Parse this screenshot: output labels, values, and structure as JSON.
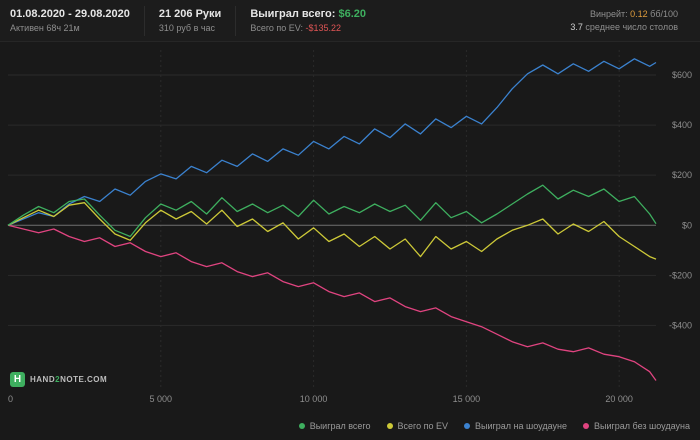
{
  "header": {
    "date_range": "01.08.2020 - 29.08.2020",
    "active_time": "Активен 68ч 21м",
    "hands": "21 206 Руки",
    "rate_per_hour": "310 руб в час",
    "won_total_label": "Выиграл всего:",
    "won_total_value": "$6.20",
    "ev_total_label": "Всего по EV:",
    "ev_total_value": "-$135.22",
    "winrate_label": "Винрейт:",
    "winrate_value": "0.12",
    "winrate_unit": "бб/100",
    "avg_tables_value": "3.7",
    "avg_tables_label": "среднее число столов"
  },
  "logo": {
    "icon_letter": "H",
    "text_part1": "HAND",
    "text_part2": "2",
    "text_part3": "NOTE.COM"
  },
  "chart_data": {
    "type": "line",
    "title": "",
    "xlabel": "",
    "ylabel": "",
    "xlim": [
      0,
      21206
    ],
    "ylim": [
      -650,
      700
    ],
    "grid": true,
    "legend_position": "bottom-right",
    "x_ticks": [
      {
        "value": 0,
        "label": "0"
      },
      {
        "value": 5000,
        "label": "5 000"
      },
      {
        "value": 10000,
        "label": "10 000"
      },
      {
        "value": 15000,
        "label": "15 000"
      },
      {
        "value": 20000,
        "label": "20 000"
      }
    ],
    "y_ticks": [
      {
        "value": 600,
        "label": "$600"
      },
      {
        "value": 400,
        "label": "$400"
      },
      {
        "value": 200,
        "label": "$200"
      },
      {
        "value": 0,
        "label": "$0"
      },
      {
        "value": -200,
        "label": "-$200"
      },
      {
        "value": -400,
        "label": "-$400"
      }
    ],
    "colors": {
      "background": "#191919",
      "grid": "#2a2a2a",
      "zero_line": "#707070",
      "axis_text": "#8e8e8e"
    },
    "series": [
      {
        "name": "Выиграл всего",
        "color": "#3eaf5f",
        "final_value": 6.2,
        "points": [
          [
            0,
            0
          ],
          [
            500,
            40
          ],
          [
            1000,
            75
          ],
          [
            1500,
            50
          ],
          [
            2000,
            95
          ],
          [
            2500,
            105
          ],
          [
            3000,
            40
          ],
          [
            3500,
            -20
          ],
          [
            4000,
            -45
          ],
          [
            4500,
            30
          ],
          [
            5000,
            85
          ],
          [
            5500,
            60
          ],
          [
            6000,
            95
          ],
          [
            6500,
            45
          ],
          [
            7000,
            110
          ],
          [
            7500,
            55
          ],
          [
            8000,
            85
          ],
          [
            8500,
            50
          ],
          [
            9000,
            80
          ],
          [
            9500,
            35
          ],
          [
            10000,
            100
          ],
          [
            10500,
            45
          ],
          [
            11000,
            75
          ],
          [
            11500,
            50
          ],
          [
            12000,
            85
          ],
          [
            12500,
            55
          ],
          [
            13000,
            80
          ],
          [
            13500,
            20
          ],
          [
            14000,
            90
          ],
          [
            14500,
            30
          ],
          [
            15000,
            55
          ],
          [
            15500,
            10
          ],
          [
            16000,
            45
          ],
          [
            16500,
            85
          ],
          [
            17000,
            125
          ],
          [
            17500,
            160
          ],
          [
            18000,
            105
          ],
          [
            18500,
            140
          ],
          [
            19000,
            115
          ],
          [
            19500,
            145
          ],
          [
            20000,
            95
          ],
          [
            20500,
            115
          ],
          [
            21000,
            45
          ],
          [
            21206,
            6.2
          ]
        ]
      },
      {
        "name": "Всего по EV",
        "color": "#cdc938",
        "final_value": -135.22,
        "points": [
          [
            0,
            0
          ],
          [
            500,
            30
          ],
          [
            1000,
            60
          ],
          [
            1500,
            35
          ],
          [
            2000,
            80
          ],
          [
            2500,
            90
          ],
          [
            3000,
            25
          ],
          [
            3500,
            -35
          ],
          [
            4000,
            -60
          ],
          [
            4500,
            10
          ],
          [
            5000,
            60
          ],
          [
            5500,
            25
          ],
          [
            6000,
            55
          ],
          [
            6500,
            5
          ],
          [
            7000,
            60
          ],
          [
            7500,
            -5
          ],
          [
            8000,
            25
          ],
          [
            8500,
            -25
          ],
          [
            9000,
            10
          ],
          [
            9500,
            -55
          ],
          [
            10000,
            -10
          ],
          [
            10500,
            -65
          ],
          [
            11000,
            -35
          ],
          [
            11500,
            -85
          ],
          [
            12000,
            -45
          ],
          [
            12500,
            -95
          ],
          [
            13000,
            -55
          ],
          [
            13500,
            -125
          ],
          [
            14000,
            -45
          ],
          [
            14500,
            -95
          ],
          [
            15000,
            -65
          ],
          [
            15500,
            -105
          ],
          [
            16000,
            -55
          ],
          [
            16500,
            -20
          ],
          [
            17000,
            0
          ],
          [
            17500,
            25
          ],
          [
            18000,
            -35
          ],
          [
            18500,
            5
          ],
          [
            19000,
            -25
          ],
          [
            19500,
            15
          ],
          [
            20000,
            -45
          ],
          [
            20500,
            -85
          ],
          [
            21000,
            -125
          ],
          [
            21206,
            -135.22
          ]
        ]
      },
      {
        "name": "Выиграл на шоудауне",
        "color": "#3b82cf",
        "points": [
          [
            0,
            0
          ],
          [
            500,
            25
          ],
          [
            1000,
            50
          ],
          [
            1500,
            35
          ],
          [
            2000,
            85
          ],
          [
            2500,
            115
          ],
          [
            3000,
            95
          ],
          [
            3500,
            145
          ],
          [
            4000,
            120
          ],
          [
            4500,
            175
          ],
          [
            5000,
            205
          ],
          [
            5500,
            185
          ],
          [
            6000,
            235
          ],
          [
            6500,
            210
          ],
          [
            7000,
            260
          ],
          [
            7500,
            235
          ],
          [
            8000,
            285
          ],
          [
            8500,
            255
          ],
          [
            9000,
            305
          ],
          [
            9500,
            280
          ],
          [
            10000,
            335
          ],
          [
            10500,
            305
          ],
          [
            11000,
            355
          ],
          [
            11500,
            325
          ],
          [
            12000,
            385
          ],
          [
            12500,
            350
          ],
          [
            13000,
            405
          ],
          [
            13500,
            365
          ],
          [
            14000,
            425
          ],
          [
            14500,
            390
          ],
          [
            15000,
            435
          ],
          [
            15500,
            405
          ],
          [
            16000,
            470
          ],
          [
            16500,
            545
          ],
          [
            17000,
            605
          ],
          [
            17500,
            640
          ],
          [
            18000,
            605
          ],
          [
            18500,
            645
          ],
          [
            19000,
            615
          ],
          [
            19500,
            655
          ],
          [
            20000,
            625
          ],
          [
            20500,
            665
          ],
          [
            21000,
            635
          ],
          [
            21206,
            650
          ]
        ]
      },
      {
        "name": "Выиграл без шоудауна",
        "color": "#e04480",
        "points": [
          [
            0,
            0
          ],
          [
            500,
            -15
          ],
          [
            1000,
            -30
          ],
          [
            1500,
            -15
          ],
          [
            2000,
            -45
          ],
          [
            2500,
            -65
          ],
          [
            3000,
            -50
          ],
          [
            3500,
            -85
          ],
          [
            4000,
            -70
          ],
          [
            4500,
            -105
          ],
          [
            5000,
            -125
          ],
          [
            5500,
            -110
          ],
          [
            6000,
            -145
          ],
          [
            6500,
            -165
          ],
          [
            7000,
            -150
          ],
          [
            7500,
            -185
          ],
          [
            8000,
            -205
          ],
          [
            8500,
            -190
          ],
          [
            9000,
            -225
          ],
          [
            9500,
            -245
          ],
          [
            10000,
            -230
          ],
          [
            10500,
            -265
          ],
          [
            11000,
            -285
          ],
          [
            11500,
            -270
          ],
          [
            12000,
            -305
          ],
          [
            12500,
            -290
          ],
          [
            13000,
            -325
          ],
          [
            13500,
            -345
          ],
          [
            14000,
            -330
          ],
          [
            14500,
            -365
          ],
          [
            15000,
            -385
          ],
          [
            15500,
            -405
          ],
          [
            16000,
            -435
          ],
          [
            16500,
            -465
          ],
          [
            17000,
            -485
          ],
          [
            17500,
            -470
          ],
          [
            18000,
            -495
          ],
          [
            18500,
            -505
          ],
          [
            19000,
            -490
          ],
          [
            19500,
            -515
          ],
          [
            20000,
            -525
          ],
          [
            20500,
            -545
          ],
          [
            21000,
            -585
          ],
          [
            21206,
            -620
          ]
        ]
      }
    ]
  }
}
